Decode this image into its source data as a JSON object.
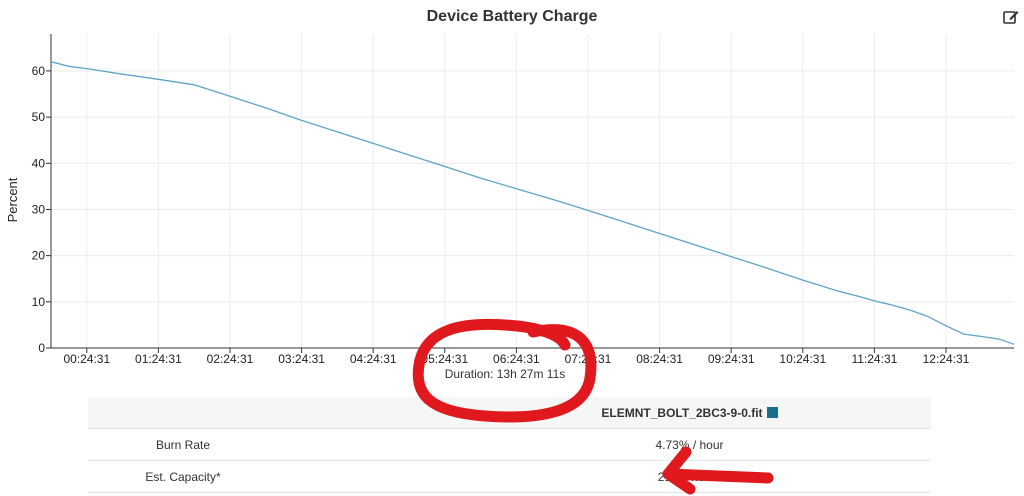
{
  "header": {
    "title": "Device Battery Charge",
    "edit_icon": "edit-icon"
  },
  "chart_data": {
    "type": "line",
    "title": "Device Battery Charge",
    "ylabel": "Percent",
    "xlabel": "",
    "ylim": [
      0,
      68
    ],
    "yticks": [
      0,
      10,
      20,
      30,
      40,
      50,
      60
    ],
    "xticks": [
      "00:24:31",
      "01:24:31",
      "02:24:31",
      "03:24:31",
      "04:24:31",
      "05:24:31",
      "06:24:31",
      "07:24:31",
      "08:24:31",
      "09:24:31",
      "10:24:31",
      "11:24:31",
      "12:24:31"
    ],
    "x_hours": [
      0,
      0.25,
      0.5,
      1.0,
      1.5,
      2.0,
      2.5,
      3.0,
      3.5,
      4.0,
      4.5,
      5.0,
      5.5,
      6.0,
      6.5,
      7.0,
      7.5,
      8.0,
      8.5,
      9.0,
      9.5,
      10.0,
      10.5,
      11.0,
      11.3,
      11.5,
      11.75,
      12.0,
      12.25,
      12.5,
      12.75,
      13.0,
      13.25,
      13.45
    ],
    "y": [
      62,
      61,
      60.5,
      59.3,
      58.2,
      57,
      54.5,
      52,
      49.3,
      46.8,
      44.3,
      41.8,
      39.3,
      36.8,
      34.5,
      32.2,
      29.8,
      27.3,
      24.8,
      22.3,
      19.8,
      17.3,
      14.7,
      12.3,
      11.1,
      10.2,
      9.3,
      8.2,
      6.8,
      4.8,
      3.0,
      2.5,
      1.9,
      0.8
    ],
    "grid": true,
    "line_color": "#5fa3c8"
  },
  "annotation": {
    "duration": "Duration: 13h 27m 11s"
  },
  "stats": {
    "file_name": "ELEMNT_BOLT_2BC3-9-0.fit",
    "swatch_color": "#1a6e8e",
    "rows": [
      {
        "label": "Burn Rate",
        "value": "4.73% / hour"
      },
      {
        "label": "Est. Capacity*",
        "value": "21.12 hours"
      }
    ]
  }
}
